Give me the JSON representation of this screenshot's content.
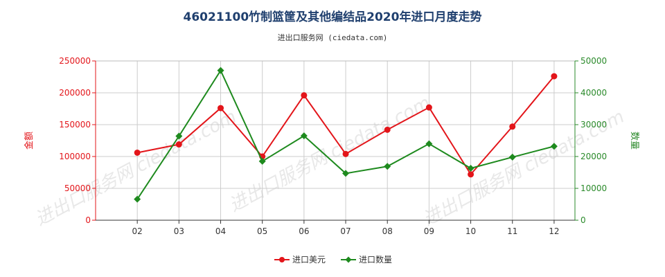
{
  "title": "46021100竹制篮筐及其他编结品2020年进口月度走势",
  "subtitle": "进出口服务网 (ciedata.com)",
  "watermark": "进出口服务网 ciedata.com",
  "colors": {
    "left_axis": "#e3151a",
    "right_axis": "#2a8a2a",
    "grid": "#cccccc"
  },
  "chart_data": {
    "type": "line",
    "categories": [
      "02",
      "03",
      "04",
      "05",
      "06",
      "07",
      "08",
      "09",
      "10",
      "11",
      "12"
    ],
    "y_left": {
      "label": "金额",
      "ylim": [
        0,
        250000
      ],
      "ticks": [
        0,
        50000,
        100000,
        150000,
        200000,
        250000
      ]
    },
    "y_right": {
      "label": "数量",
      "ylim": [
        0,
        50000
      ],
      "ticks": [
        0,
        10000,
        20000,
        30000,
        40000,
        50000
      ]
    },
    "grid": true,
    "legend_position": "bottom-center",
    "series": [
      {
        "name": "进口美元",
        "axis": "left",
        "color": "#e3151a",
        "marker": "circle",
        "values": [
          106000,
          119000,
          176000,
          100000,
          196000,
          104000,
          142000,
          177000,
          72000,
          147000,
          226000
        ]
      },
      {
        "name": "进口数量",
        "axis": "right",
        "color": "#1e8a1e",
        "marker": "diamond",
        "values": [
          6600,
          26400,
          47000,
          18500,
          26500,
          14700,
          16900,
          24000,
          16300,
          19800,
          23200
        ]
      }
    ]
  }
}
